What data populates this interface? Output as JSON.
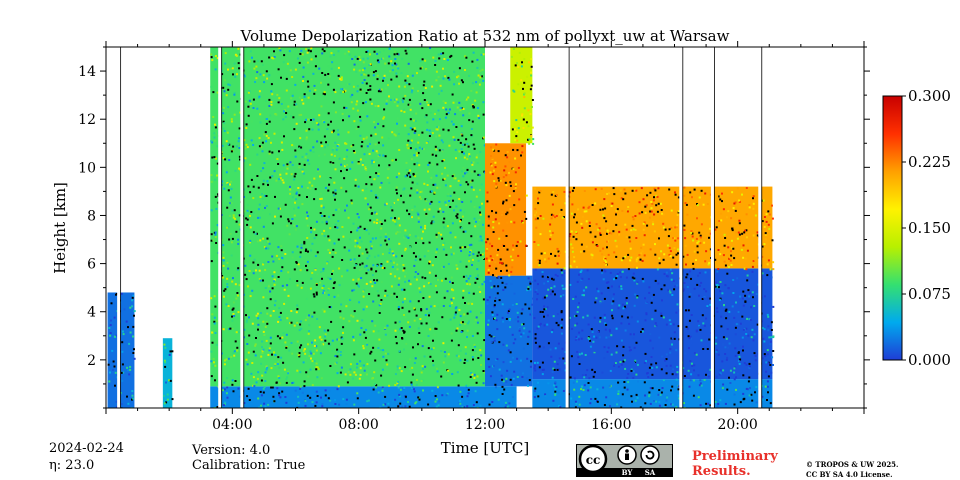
{
  "chart_data": {
    "type": "heatmap",
    "title": "Volume Depolarization Ratio at 532 nm of pollyxt_uw at Warsaw",
    "xlabel": "Time [UTC]",
    "ylabel": "Height [km]",
    "xlim_hours": [
      0,
      24
    ],
    "ylim_km": [
      0,
      15
    ],
    "x_ticks": [
      {
        "value": 4,
        "label": "04:00"
      },
      {
        "value": 8,
        "label": "08:00"
      },
      {
        "value": 12,
        "label": "12:00"
      },
      {
        "value": 16,
        "label": "16:00"
      },
      {
        "value": 20,
        "label": "20:00"
      }
    ],
    "y_ticks": [
      {
        "value": 2,
        "label": "2"
      },
      {
        "value": 4,
        "label": "4"
      },
      {
        "value": 6,
        "label": "6"
      },
      {
        "value": 8,
        "label": "8"
      },
      {
        "value": 10,
        "label": "10"
      },
      {
        "value": 12,
        "label": "12"
      },
      {
        "value": 14,
        "label": "14"
      }
    ],
    "colorbar": {
      "min": 0.0,
      "max": 0.3,
      "ticks": [
        {
          "value": 0.0,
          "label": "0.000"
        },
        {
          "value": 0.075,
          "label": "0.075"
        },
        {
          "value": 0.15,
          "label": "0.150"
        },
        {
          "value": 0.225,
          "label": "0.225"
        },
        {
          "value": 0.3,
          "label": "0.300"
        }
      ],
      "colors": [
        "#1f3dd6",
        "#00aaee",
        "#34e070",
        "#b8f000",
        "#fff200",
        "#ffa000",
        "#ff3000",
        "#c80000"
      ]
    },
    "data_regions": [
      {
        "t0": 0.05,
        "t1": 0.9,
        "h0": 0.0,
        "h1": 4.8,
        "value": 0.02
      },
      {
        "t0": 1.8,
        "t1": 2.1,
        "h0": 0.0,
        "h1": 2.9,
        "value": 0.05
      },
      {
        "t0": 3.3,
        "t1": 13.0,
        "h0": 0.0,
        "h1": 0.9,
        "value": 0.03
      },
      {
        "t0": 3.3,
        "t1": 12.0,
        "h0": 0.9,
        "h1": 15.0,
        "value": 0.09
      },
      {
        "t0": 12.0,
        "t1": 13.5,
        "h0": 0.9,
        "h1": 5.5,
        "value": 0.02
      },
      {
        "t0": 12.0,
        "t1": 13.3,
        "h0": 5.5,
        "h1": 11.0,
        "value": 0.22
      },
      {
        "t0": 12.8,
        "t1": 13.5,
        "h0": 11.0,
        "h1": 15.0,
        "value": 0.14
      },
      {
        "t0": 13.5,
        "t1": 21.1,
        "h0": 0.0,
        "h1": 1.2,
        "value": 0.03
      },
      {
        "t0": 13.5,
        "t1": 21.1,
        "h0": 1.2,
        "h1": 5.8,
        "value": 0.01
      },
      {
        "t0": 13.5,
        "t1": 21.1,
        "h0": 5.8,
        "h1": 9.2,
        "value": 0.21
      }
    ],
    "gaps_hours": [
      0.4,
      3.6,
      4.3,
      14.6,
      18.2,
      19.2,
      20.7
    ]
  },
  "footer": {
    "date": "2024-02-24",
    "eta": "η: 23.0",
    "version": "Version: 4.0",
    "calibration": "Calibration: True",
    "preliminary_line1": "Preliminary",
    "preliminary_line2": "Results.",
    "copyright_line1": "© TROPOS & UW 2025.",
    "copyright_line2": "CC BY SA 4.0 License.",
    "license_badge_by": "BY",
    "license_badge_sa": "SA"
  }
}
